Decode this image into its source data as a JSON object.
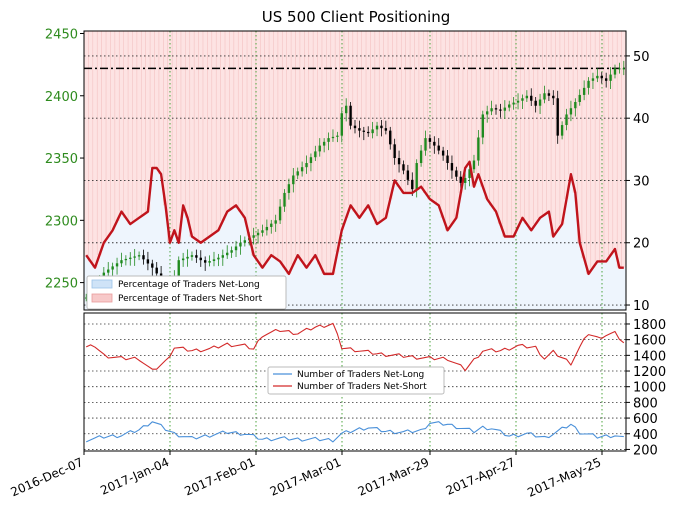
{
  "chart_data": [
    {
      "type": "candlestick-line",
      "title": "US 500 Client Positioning",
      "left_axis": {
        "ticks": [
          2250,
          2300,
          2350,
          2400,
          2450
        ],
        "range": [
          2228,
          2452
        ],
        "color": "#2e8b1e"
      },
      "right_axis": {
        "ticks": [
          10,
          20,
          30,
          40,
          50
        ],
        "range": [
          9.2,
          54.0
        ]
      },
      "x_labels": [
        "2016-Dec-07",
        "2017-Jan-04",
        "2017-Feb-01",
        "2017-Mar-01",
        "2017-Mar-29",
        "2017-Apr-27",
        "2017-May-25"
      ],
      "reference_line": {
        "value": 2422,
        "style": "dash-dot"
      },
      "legend": {
        "position": "lower-left",
        "entries": [
          "Percentage of Traders Net-Long",
          "Percentage of Traders Net-Short"
        ]
      },
      "price_anchors": [
        [
          0,
          2238
        ],
        [
          4,
          2258
        ],
        [
          8,
          2268
        ],
        [
          12,
          2272
        ],
        [
          15,
          2262
        ],
        [
          18,
          2248
        ],
        [
          19,
          2240
        ],
        [
          21,
          2268
        ],
        [
          24,
          2272
        ],
        [
          27,
          2266
        ],
        [
          30,
          2270
        ],
        [
          33,
          2276
        ],
        [
          35,
          2282
        ],
        [
          38,
          2288
        ],
        [
          40,
          2292
        ],
        [
          43,
          2300
        ],
        [
          45,
          2322
        ],
        [
          47,
          2336
        ],
        [
          50,
          2346
        ],
        [
          53,
          2360
        ],
        [
          55,
          2366
        ],
        [
          57,
          2368
        ],
        [
          58,
          2386
        ],
        [
          59,
          2392
        ],
        [
          60,
          2376
        ],
        [
          62,
          2372
        ],
        [
          64,
          2370
        ],
        [
          66,
          2376
        ],
        [
          68,
          2372
        ],
        [
          70,
          2350
        ],
        [
          72,
          2340
        ],
        [
          74,
          2325
        ],
        [
          75,
          2346
        ],
        [
          77,
          2366
        ],
        [
          79,
          2360
        ],
        [
          81,
          2352
        ],
        [
          83,
          2340
        ],
        [
          85,
          2330
        ],
        [
          86,
          2334
        ],
        [
          88,
          2348
        ],
        [
          90,
          2385
        ],
        [
          92,
          2390
        ],
        [
          94,
          2388
        ],
        [
          96,
          2393
        ],
        [
          98,
          2396
        ],
        [
          100,
          2400
        ],
        [
          102,
          2392
        ],
        [
          104,
          2402
        ],
        [
          106,
          2398
        ],
        [
          107,
          2368
        ],
        [
          109,
          2385
        ],
        [
          111,
          2395
        ],
        [
          114,
          2412
        ],
        [
          116,
          2416
        ],
        [
          118,
          2412
        ],
        [
          120,
          2422
        ]
      ],
      "net_short_pct_anchors": [
        [
          0,
          18
        ],
        [
          2,
          16
        ],
        [
          4,
          20
        ],
        [
          6,
          22
        ],
        [
          8,
          25
        ],
        [
          10,
          23
        ],
        [
          12,
          24
        ],
        [
          14,
          25
        ],
        [
          15,
          32
        ],
        [
          16,
          32
        ],
        [
          17,
          31
        ],
        [
          18,
          26
        ],
        [
          19,
          20
        ],
        [
          20,
          22
        ],
        [
          21,
          20
        ],
        [
          22,
          26
        ],
        [
          23,
          24
        ],
        [
          24,
          21
        ],
        [
          26,
          20
        ],
        [
          28,
          21
        ],
        [
          30,
          22
        ],
        [
          32,
          25
        ],
        [
          34,
          26
        ],
        [
          36,
          24
        ],
        [
          38,
          18
        ],
        [
          40,
          16
        ],
        [
          42,
          18
        ],
        [
          44,
          17
        ],
        [
          46,
          15
        ],
        [
          48,
          18
        ],
        [
          50,
          16
        ],
        [
          52,
          18
        ],
        [
          54,
          15
        ],
        [
          56,
          15
        ],
        [
          58,
          22
        ],
        [
          60,
          26
        ],
        [
          62,
          24
        ],
        [
          64,
          26
        ],
        [
          66,
          23
        ],
        [
          68,
          24
        ],
        [
          70,
          30
        ],
        [
          72,
          28
        ],
        [
          74,
          28
        ],
        [
          76,
          29
        ],
        [
          78,
          27
        ],
        [
          80,
          26
        ],
        [
          82,
          22
        ],
        [
          84,
          24
        ],
        [
          86,
          32
        ],
        [
          87,
          33
        ],
        [
          88,
          29
        ],
        [
          89,
          31
        ],
        [
          91,
          27
        ],
        [
          93,
          25
        ],
        [
          95,
          21
        ],
        [
          97,
          21
        ],
        [
          99,
          24
        ],
        [
          101,
          22
        ],
        [
          103,
          24
        ],
        [
          105,
          25
        ],
        [
          106,
          21
        ],
        [
          108,
          23
        ],
        [
          110,
          31
        ],
        [
          111,
          28
        ],
        [
          112,
          20
        ],
        [
          114,
          15
        ],
        [
          116,
          17
        ],
        [
          118,
          17
        ],
        [
          120,
          19
        ],
        [
          121,
          16
        ],
        [
          122,
          16
        ]
      ]
    },
    {
      "type": "line",
      "left_axis": {
        "ticks": [],
        "range": [
          180,
          1940
        ]
      },
      "right_axis": {
        "ticks": [
          200,
          400,
          600,
          800,
          1000,
          1200,
          1400,
          1600,
          1800
        ],
        "range": [
          180,
          1940
        ]
      },
      "legend": {
        "position": "center",
        "entries": [
          "Number of Traders Net-Long",
          "Number of Traders Net-Short"
        ]
      },
      "series": [
        {
          "name": "Number of Traders Net-Long",
          "color": "#4a90d9",
          "anchors": [
            [
              0,
              320
            ],
            [
              4,
              360
            ],
            [
              8,
              380
            ],
            [
              12,
              450
            ],
            [
              15,
              560
            ],
            [
              18,
              460
            ],
            [
              20,
              400
            ],
            [
              24,
              340
            ],
            [
              28,
              380
            ],
            [
              32,
              420
            ],
            [
              36,
              400
            ],
            [
              40,
              330
            ],
            [
              44,
              340
            ],
            [
              48,
              330
            ],
            [
              52,
              330
            ],
            [
              56,
              320
            ],
            [
              58,
              400
            ],
            [
              62,
              460
            ],
            [
              64,
              480
            ],
            [
              68,
              430
            ],
            [
              72,
              420
            ],
            [
              76,
              440
            ],
            [
              78,
              540
            ],
            [
              82,
              520
            ],
            [
              86,
              460
            ],
            [
              88,
              430
            ],
            [
              90,
              480
            ],
            [
              92,
              470
            ],
            [
              96,
              370
            ],
            [
              100,
              400
            ],
            [
              104,
              350
            ],
            [
              106,
              400
            ],
            [
              110,
              520
            ],
            [
              112,
              420
            ],
            [
              116,
              360
            ],
            [
              120,
              380
            ],
            [
              122,
              340
            ]
          ]
        },
        {
          "name": "Number of Traders Net-Short",
          "color": "#d32a2a",
          "anchors": [
            [
              0,
              1500
            ],
            [
              2,
              1520
            ],
            [
              4,
              1400
            ],
            [
              8,
              1360
            ],
            [
              12,
              1360
            ],
            [
              15,
              1200
            ],
            [
              18,
              1320
            ],
            [
              20,
              1500
            ],
            [
              24,
              1460
            ],
            [
              28,
              1480
            ],
            [
              32,
              1540
            ],
            [
              36,
              1520
            ],
            [
              38,
              1480
            ],
            [
              40,
              1660
            ],
            [
              44,
              1720
            ],
            [
              48,
              1680
            ],
            [
              52,
              1760
            ],
            [
              56,
              1800
            ],
            [
              58,
              1500
            ],
            [
              62,
              1460
            ],
            [
              66,
              1420
            ],
            [
              70,
              1400
            ],
            [
              74,
              1380
            ],
            [
              78,
              1360
            ],
            [
              82,
              1360
            ],
            [
              86,
              1220
            ],
            [
              88,
              1340
            ],
            [
              90,
              1460
            ],
            [
              94,
              1460
            ],
            [
              98,
              1520
            ],
            [
              102,
              1500
            ],
            [
              104,
              1360
            ],
            [
              106,
              1440
            ],
            [
              110,
              1300
            ],
            [
              112,
              1500
            ],
            [
              114,
              1680
            ],
            [
              116,
              1620
            ],
            [
              118,
              1660
            ],
            [
              120,
              1680
            ],
            [
              122,
              1560
            ]
          ]
        }
      ]
    }
  ]
}
